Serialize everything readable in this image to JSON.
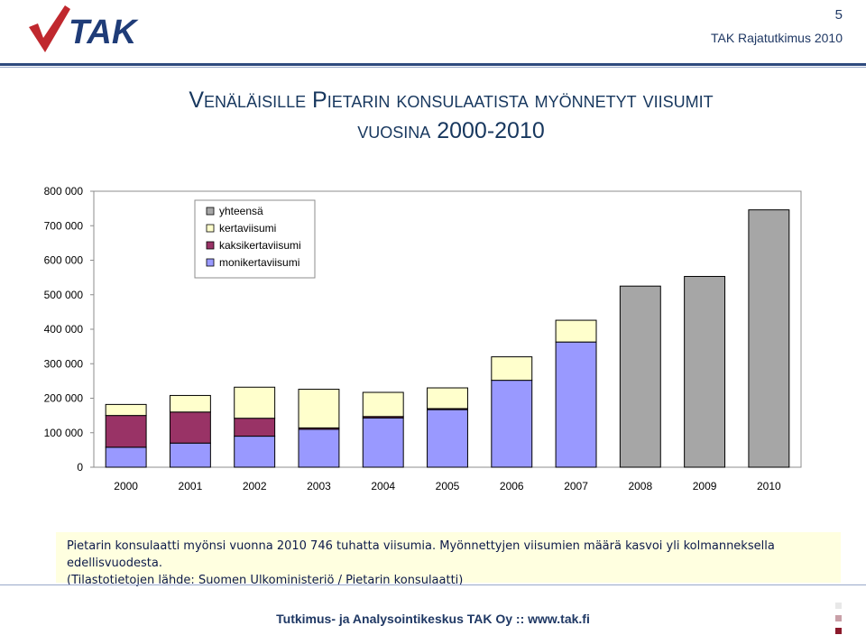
{
  "header": {
    "logo_text": "TAK",
    "page_number": "5",
    "org_label": "TAK Rajatutkimus 2010"
  },
  "title": {
    "line1": "Venäläisille Pietarin konsulaatista myönnetyt viisumit",
    "line2": "vuosina 2000-2010"
  },
  "chart_data": {
    "type": "bar",
    "stacked": true,
    "categories": [
      "2000",
      "2001",
      "2002",
      "2003",
      "2004",
      "2005",
      "2006",
      "2007",
      "2008",
      "2009",
      "2010"
    ],
    "ylim": [
      0,
      800000
    ],
    "y_ticks": [
      "800 000",
      "700 000",
      "600 000",
      "500 000",
      "400 000",
      "300 000",
      "200 000",
      "100 000",
      "0"
    ],
    "y_tick_values": [
      800000,
      700000,
      600000,
      500000,
      400000,
      300000,
      200000,
      100000,
      0
    ],
    "legend_position": "top-left",
    "series": [
      {
        "name": "monikertaviisumi",
        "color": "#9999ff",
        "values": [
          58000,
          70000,
          90000,
          110000,
          143000,
          167000,
          252000,
          363000,
          null,
          null,
          null
        ]
      },
      {
        "name": "kaksikertaviisumi",
        "color": "#993366",
        "values": [
          92000,
          90000,
          52000,
          4000,
          4000,
          3000,
          0,
          0,
          null,
          null,
          null
        ]
      },
      {
        "name": "kertaviisumi",
        "color": "#ffffcc",
        "values": [
          32000,
          48000,
          90000,
          112000,
          70000,
          60000,
          68000,
          63000,
          null,
          null,
          null
        ]
      },
      {
        "name": "yhteensä",
        "color": "#a6a6a6",
        "values": [
          null,
          null,
          null,
          null,
          null,
          null,
          null,
          null,
          525000,
          553000,
          746000
        ]
      }
    ],
    "legend_order": [
      "yhteensä",
      "kertaviisumi",
      "kaksikertaviisumi",
      "monikertaviisumi"
    ]
  },
  "note": {
    "line1": "Pietarin konsulaatti myönsi vuonna 2010 746 tuhatta viisumia. Myönnettyjen viisumien määrä kasvoi yli kolmanneksella edellisvuodesta.",
    "line2": "(Tilastotietojen lähde: Suomen Ulkoministeriö / Pietarin konsulaatti)"
  },
  "footer": {
    "text": "Tutkimus- ja Analysointikeskus TAK Oy  ::  www.tak.fi"
  },
  "colors": {
    "navy": "#1f3864",
    "title": "#17375e",
    "note_bg": "#ffffe0"
  }
}
